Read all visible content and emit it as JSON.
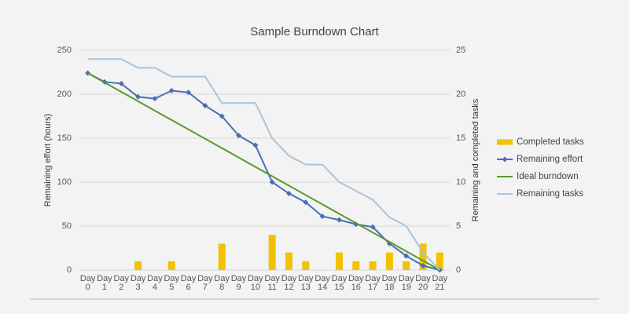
{
  "chart_data": {
    "type": "burndown",
    "title": "Sample Burndown Chart",
    "y_label": "Remaining effort (hours)",
    "y2_label": "Remaining and completed tasks",
    "categories": [
      "Day 0",
      "Day 1",
      "Day 2",
      "Day 3",
      "Day 4",
      "Day 5",
      "Day 6",
      "Day 7",
      "Day 8",
      "Day 9",
      "Day 10",
      "Day 11",
      "Day 12",
      "Day 13",
      "Day 14",
      "Day 15",
      "Day 16",
      "Day 17",
      "Day 18",
      "Day 19",
      "Day 20",
      "Day 21"
    ],
    "series": [
      {
        "name": "Completed tasks",
        "type": "bar",
        "axis": "y2",
        "color": "#f2c200",
        "values": [
          0,
          0,
          0,
          1,
          0,
          1,
          0,
          0,
          3,
          0,
          0,
          4,
          2,
          1,
          0,
          2,
          1,
          1,
          2,
          1,
          3,
          2
        ]
      },
      {
        "name": "Remaining effort",
        "type": "line",
        "marker": true,
        "color": "#4a6fb5",
        "values": [
          224,
          214,
          212,
          197,
          195,
          204,
          202,
          187,
          175,
          153,
          142,
          100,
          87,
          77,
          61,
          57,
          52,
          49,
          30,
          16,
          5,
          0
        ]
      },
      {
        "name": "Ideal burndown",
        "type": "line",
        "color": "#5a9a2c",
        "values": [
          224,
          213.3,
          202.7,
          192,
          181.3,
          170.7,
          160,
          149.3,
          138.7,
          128,
          117.3,
          106.7,
          96,
          85.3,
          74.7,
          64,
          53.3,
          42.7,
          32,
          21.3,
          10.7,
          0
        ]
      },
      {
        "name": "Remaining tasks",
        "type": "line",
        "axis": "y2",
        "color": "#a9c4dd",
        "values": [
          24,
          24,
          24,
          23,
          23,
          22,
          22,
          22,
          19,
          19,
          19,
          15,
          13,
          12,
          12,
          10,
          9,
          8,
          6,
          5,
          2,
          0
        ]
      }
    ],
    "ylim": [
      0,
      250
    ],
    "yticks": [
      0,
      50,
      100,
      150,
      200,
      250
    ],
    "y2lim": [
      0,
      25
    ],
    "y2ticks": [
      0,
      5,
      10,
      15,
      20,
      25
    ],
    "grid": true,
    "legend": "right"
  }
}
